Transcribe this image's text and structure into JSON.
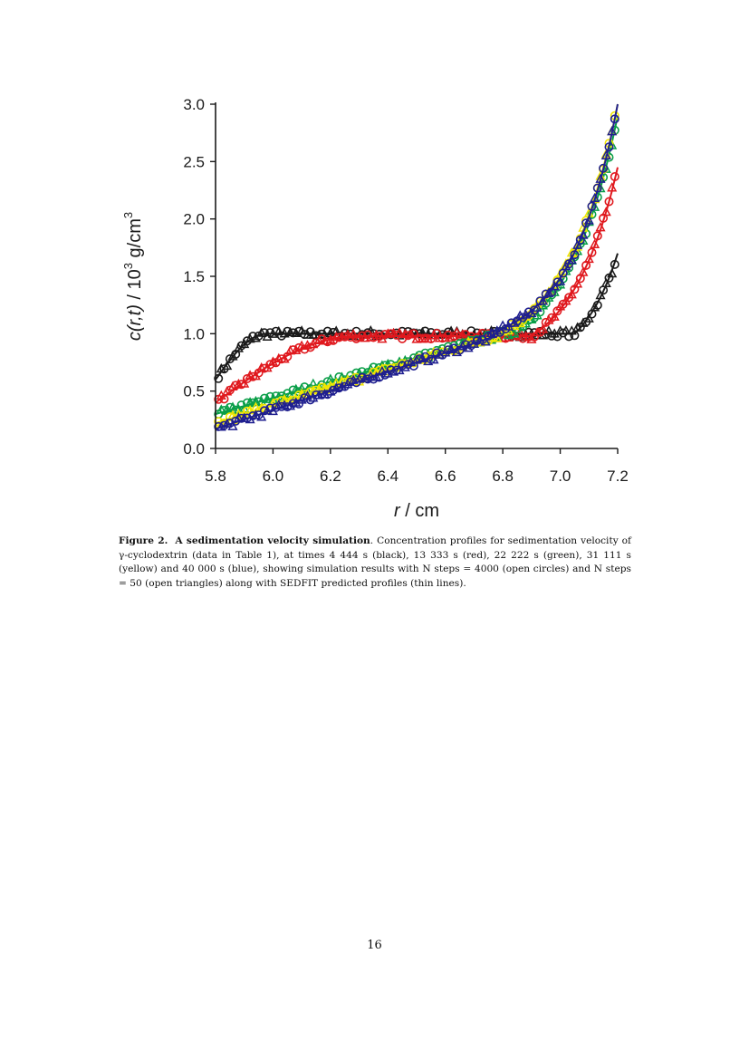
{
  "figure": {
    "chart_data": {
      "type": "scatter",
      "xlabel_var": "r",
      "xlabel_unit": " / cm",
      "ylabel_var": "c(r,t)",
      "ylabel_unit": "  / 10",
      "ylabel_exp": "3",
      "ylabel_tail": " g/cm",
      "ylabel_tail_exp": "3",
      "xlim": [
        5.8,
        7.2
      ],
      "ylim": [
        0.0,
        3.0
      ],
      "x_ticks": [
        "5.8",
        "6.0",
        "6.2",
        "6.4",
        "6.6",
        "6.8",
        "7.0",
        "7.2"
      ],
      "y_ticks": [
        "0.0",
        "0.5",
        "1.0",
        "1.5",
        "2.0",
        "2.5",
        "3.0"
      ],
      "grid": false,
      "series": [
        {
          "color": "#1a1a1a",
          "plateau": 1.0,
          "meniscus": 0.6,
          "rise_x": 5.98,
          "bottom_x": 7.05,
          "bottom_k": 8.0,
          "end_y": 1.7
        },
        {
          "color": "#e0191e",
          "plateau": 0.98,
          "meniscus": 0.4,
          "rise_x": 6.3,
          "bottom_x": 6.9,
          "bottom_k": 6.3,
          "end_y": 2.45
        },
        {
          "color": "#0a9e48",
          "plateau": 1.0,
          "meniscus": 0.3,
          "rise_x": 6.8,
          "bottom_x": 6.82,
          "bottom_k": 5.8,
          "end_y": 2.9
        },
        {
          "color": "#f2e600",
          "plateau": 1.0,
          "meniscus": 0.22,
          "rise_x": 6.8,
          "bottom_x": 6.78,
          "bottom_k": 5.8,
          "end_y": 3.0
        },
        {
          "color": "#1f1f8f",
          "plateau": 1.0,
          "meniscus": 0.17,
          "rise_x": 6.8,
          "bottom_x": 6.75,
          "bottom_k": 6.2,
          "end_y": 3.0
        }
      ]
    }
  },
  "caption": {
    "label": "Figure 2.",
    "title": "A sedimentation velocity simulation",
    "text": ". Concentration profiles for sedimentation velocity of γ-cyclodextrin (data in Table 1), at times 4 444 s (black), 13 333 s (red), 22 222 s (green), 31 111 s (yellow) and 40 000 s (blue), showing simulation results with N steps = 4000 (open circles) and N steps = 50 (open triangles) along with SEDFIT predicted profiles (thin lines)."
  },
  "page_number": "16"
}
